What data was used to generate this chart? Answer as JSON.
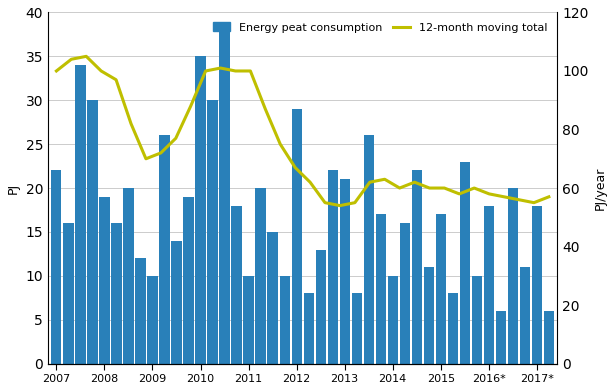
{
  "bar_values": [
    22,
    16,
    34,
    30,
    19,
    16,
    20,
    12,
    10,
    26,
    14,
    19,
    35,
    30,
    38,
    18,
    10,
    20,
    15,
    10,
    29,
    8,
    13,
    22,
    21,
    8,
    26,
    17,
    10,
    16,
    22,
    11,
    17,
    8,
    23,
    10,
    18,
    6,
    20,
    11,
    18,
    6
  ],
  "moving_avg_y": [
    100,
    104,
    105,
    100,
    97,
    82,
    70,
    72,
    77,
    88,
    100,
    101,
    100,
    100,
    87,
    75,
    67,
    62,
    55,
    54,
    55,
    62,
    63,
    60,
    62,
    60,
    60,
    58,
    60,
    58,
    57,
    56,
    55,
    57
  ],
  "bar_color": "#2980B9",
  "line_color": "#BFBF00",
  "ylabel_left": "PJ",
  "ylabel_right": "PJ/year",
  "ylim_left": [
    0,
    40
  ],
  "ylim_right": [
    0,
    120
  ],
  "yticks_left": [
    0,
    5,
    10,
    15,
    20,
    25,
    30,
    35,
    40
  ],
  "yticks_right": [
    0,
    20,
    40,
    60,
    80,
    100,
    120
  ],
  "x_tick_labels": [
    "2007",
    "2008",
    "2009",
    "2010",
    "2011",
    "2012",
    "2013",
    "2014",
    "2015",
    "2016*",
    "2017*"
  ],
  "x_tick_positions": [
    0,
    4,
    8,
    12,
    16,
    20,
    24,
    28,
    32,
    36,
    40
  ],
  "legend_bar": "Energy peat consumption",
  "legend_line": "12-month moving total",
  "background_color": "#ffffff",
  "grid_color": "#cccccc",
  "n_bars": 42
}
